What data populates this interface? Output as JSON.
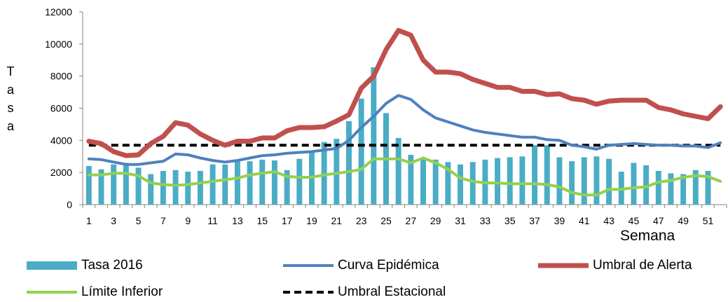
{
  "chart_data": {
    "type": "bar",
    "ylabel": "Tasa",
    "xlabel": "Semana",
    "ylim": [
      0,
      12000
    ],
    "y_ticks": [
      "0",
      "2000",
      "4000",
      "6000",
      "8000",
      "10000",
      "12000"
    ],
    "x_ticks": [
      "1",
      "3",
      "5",
      "7",
      "9",
      "11",
      "13",
      "15",
      "17",
      "19",
      "21",
      "23",
      "25",
      "27",
      "29",
      "31",
      "33",
      "35",
      "37",
      "39",
      "41",
      "43",
      "45",
      "47",
      "49",
      "51"
    ],
    "weeks": [
      1,
      2,
      3,
      4,
      5,
      6,
      7,
      8,
      9,
      10,
      11,
      12,
      13,
      14,
      15,
      16,
      17,
      18,
      19,
      20,
      21,
      22,
      23,
      24,
      25,
      26,
      27,
      28,
      29,
      30,
      31,
      32,
      33,
      34,
      35,
      36,
      37,
      38,
      39,
      40,
      41,
      42,
      43,
      44,
      45,
      46,
      47,
      48,
      49,
      50,
      51,
      52
    ],
    "series": [
      {
        "name": "Tasa 2016",
        "kind": "bar",
        "color": "#4BACC6",
        "values": [
          2400,
          2200,
          2500,
          2600,
          2300,
          1900,
          2100,
          2150,
          2050,
          2100,
          2500,
          2500,
          2700,
          2700,
          2800,
          2750,
          2150,
          2850,
          3300,
          3900,
          4100,
          5200,
          6600,
          8550,
          5700,
          4150,
          3100,
          2900,
          2800,
          2650,
          2500,
          2650,
          2800,
          2900,
          2950,
          3000,
          3700,
          3700,
          2950,
          2700,
          2950,
          3000,
          2850,
          2050,
          2600,
          2450,
          2100,
          1950,
          1900,
          2150,
          2100,
          0
        ]
      },
      {
        "name": "Curva Epidémica",
        "kind": "line",
        "color": "#4F81BD",
        "values": [
          2850,
          2800,
          2650,
          2500,
          2500,
          2600,
          2700,
          3150,
          3100,
          2900,
          2750,
          2650,
          2750,
          2900,
          3050,
          3100,
          3200,
          3250,
          3300,
          3400,
          3500,
          4000,
          4800,
          5500,
          6300,
          6800,
          6550,
          5900,
          5400,
          5150,
          4900,
          4650,
          4500,
          4400,
          4300,
          4200,
          4200,
          4050,
          4000,
          3700,
          3600,
          3450,
          3700,
          3750,
          3800,
          3750,
          3700,
          3700,
          3650,
          3650,
          3550,
          3850
        ]
      },
      {
        "name": "Umbral de Alerta",
        "kind": "line",
        "color": "#C0504D",
        "values": [
          3950,
          3800,
          3300,
          3050,
          3100,
          3800,
          4250,
          5100,
          4950,
          4400,
          4000,
          3700,
          3950,
          3950,
          4150,
          4150,
          4600,
          4800,
          4800,
          4850,
          5200,
          5600,
          7250,
          8000,
          9650,
          10850,
          10550,
          9000,
          8250,
          8250,
          8150,
          7800,
          7550,
          7300,
          7300,
          7050,
          7050,
          6850,
          6900,
          6600,
          6500,
          6250,
          6450,
          6500,
          6500,
          6500,
          6050,
          5900,
          5650,
          5500,
          5350,
          6100
        ]
      },
      {
        "name": "Límite Inferior",
        "kind": "line",
        "color": "#92D050",
        "values": [
          1850,
          1850,
          1950,
          1950,
          1800,
          1350,
          1250,
          1200,
          1250,
          1350,
          1450,
          1550,
          1650,
          1850,
          1950,
          2050,
          1750,
          1700,
          1700,
          1850,
          1950,
          2050,
          2200,
          2850,
          2850,
          2850,
          2600,
          2900,
          2600,
          2200,
          1650,
          1450,
          1350,
          1350,
          1300,
          1300,
          1300,
          1250,
          1100,
          750,
          600,
          600,
          950,
          950,
          1050,
          1100,
          1400,
          1500,
          1700,
          1800,
          1750,
          1450
        ]
      },
      {
        "name": "Umbral Estacional",
        "kind": "dashed",
        "color": "#000000",
        "values": [
          3700,
          3700,
          3700,
          3700,
          3700,
          3700,
          3700,
          3700,
          3700,
          3700,
          3700,
          3700,
          3700,
          3700,
          3700,
          3700,
          3700,
          3700,
          3700,
          3700,
          3700,
          3700,
          3700,
          3700,
          3700,
          3700,
          3700,
          3700,
          3700,
          3700,
          3700,
          3700,
          3700,
          3700,
          3700,
          3700,
          3700,
          3700,
          3700,
          3700,
          3700,
          3700,
          3700,
          3700,
          3700,
          3700,
          3700,
          3700,
          3700,
          3700,
          3700,
          3700
        ]
      }
    ],
    "legend_placement": "bottom"
  }
}
